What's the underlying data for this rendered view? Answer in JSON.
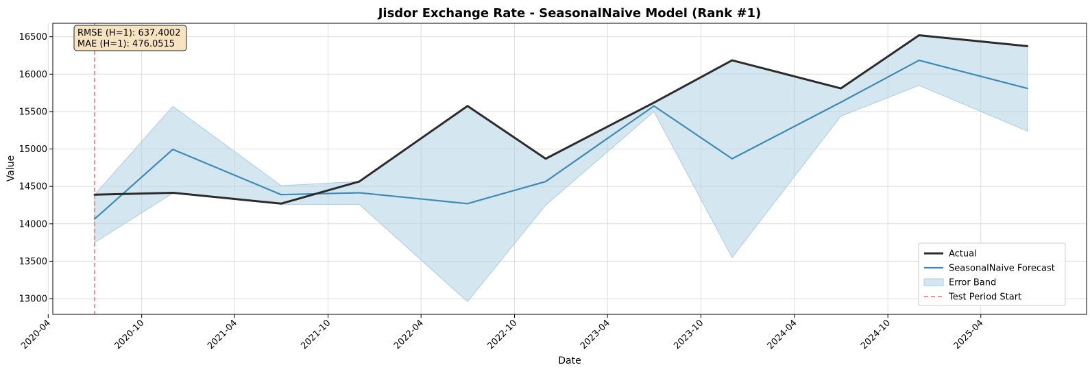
{
  "chart_data": {
    "type": "line",
    "title": "Jisdor Exchange Rate - SeasonalNaive Model (Rank #1)",
    "xlabel": "Date",
    "ylabel": "Value",
    "x_ticks": [
      "2020-04",
      "2020-10",
      "2021-04",
      "2021-10",
      "2022-04",
      "2022-10",
      "2023-04",
      "2023-10",
      "2024-04",
      "2024-10",
      "2025-04"
    ],
    "y_ticks": [
      13000,
      13500,
      14000,
      14500,
      15000,
      15500,
      16000,
      16500
    ],
    "ylim": [
      12790,
      16680
    ],
    "xlim": [
      "2020-04-10",
      "2025-10-25"
    ],
    "x": [
      "2020-07-01",
      "2020-12-01",
      "2021-07-01",
      "2021-12-01",
      "2022-07-01",
      "2022-12-01",
      "2023-07-01",
      "2023-12-01",
      "2024-07-01",
      "2024-12-01",
      "2025-07-01"
    ],
    "series": [
      {
        "name": "Actual",
        "color": "#2b2b2b",
        "values": [
          14390,
          14415,
          14270,
          14565,
          15575,
          14870,
          15620,
          16185,
          15810,
          16520,
          16375
        ]
      },
      {
        "name": "SeasonalNaive Forecast",
        "color": "#3a8ab5",
        "values": [
          14065,
          14995,
          14390,
          14415,
          14270,
          14565,
          15575,
          14870,
          15625,
          16185,
          15810
        ]
      }
    ],
    "error_band": {
      "name": "Error Band",
      "color": "#a9cde0",
      "lower": [
        13750,
        14410,
        14260,
        14260,
        12960,
        14250,
        15500,
        13550,
        15440,
        15850,
        15240
      ],
      "upper": [
        14390,
        15570,
        14510,
        14565,
        15575,
        14870,
        15620,
        16185,
        15810,
        16520,
        16375
      ]
    },
    "test_period_start": {
      "name": "Test Period Start",
      "date": "2020-07-01",
      "color": "#f07070"
    },
    "metrics": [
      "RMSE (H=1): 637.4002",
      "MAE (H=1): 476.0515"
    ],
    "legend_position": "bottom-right",
    "grid": true
  }
}
